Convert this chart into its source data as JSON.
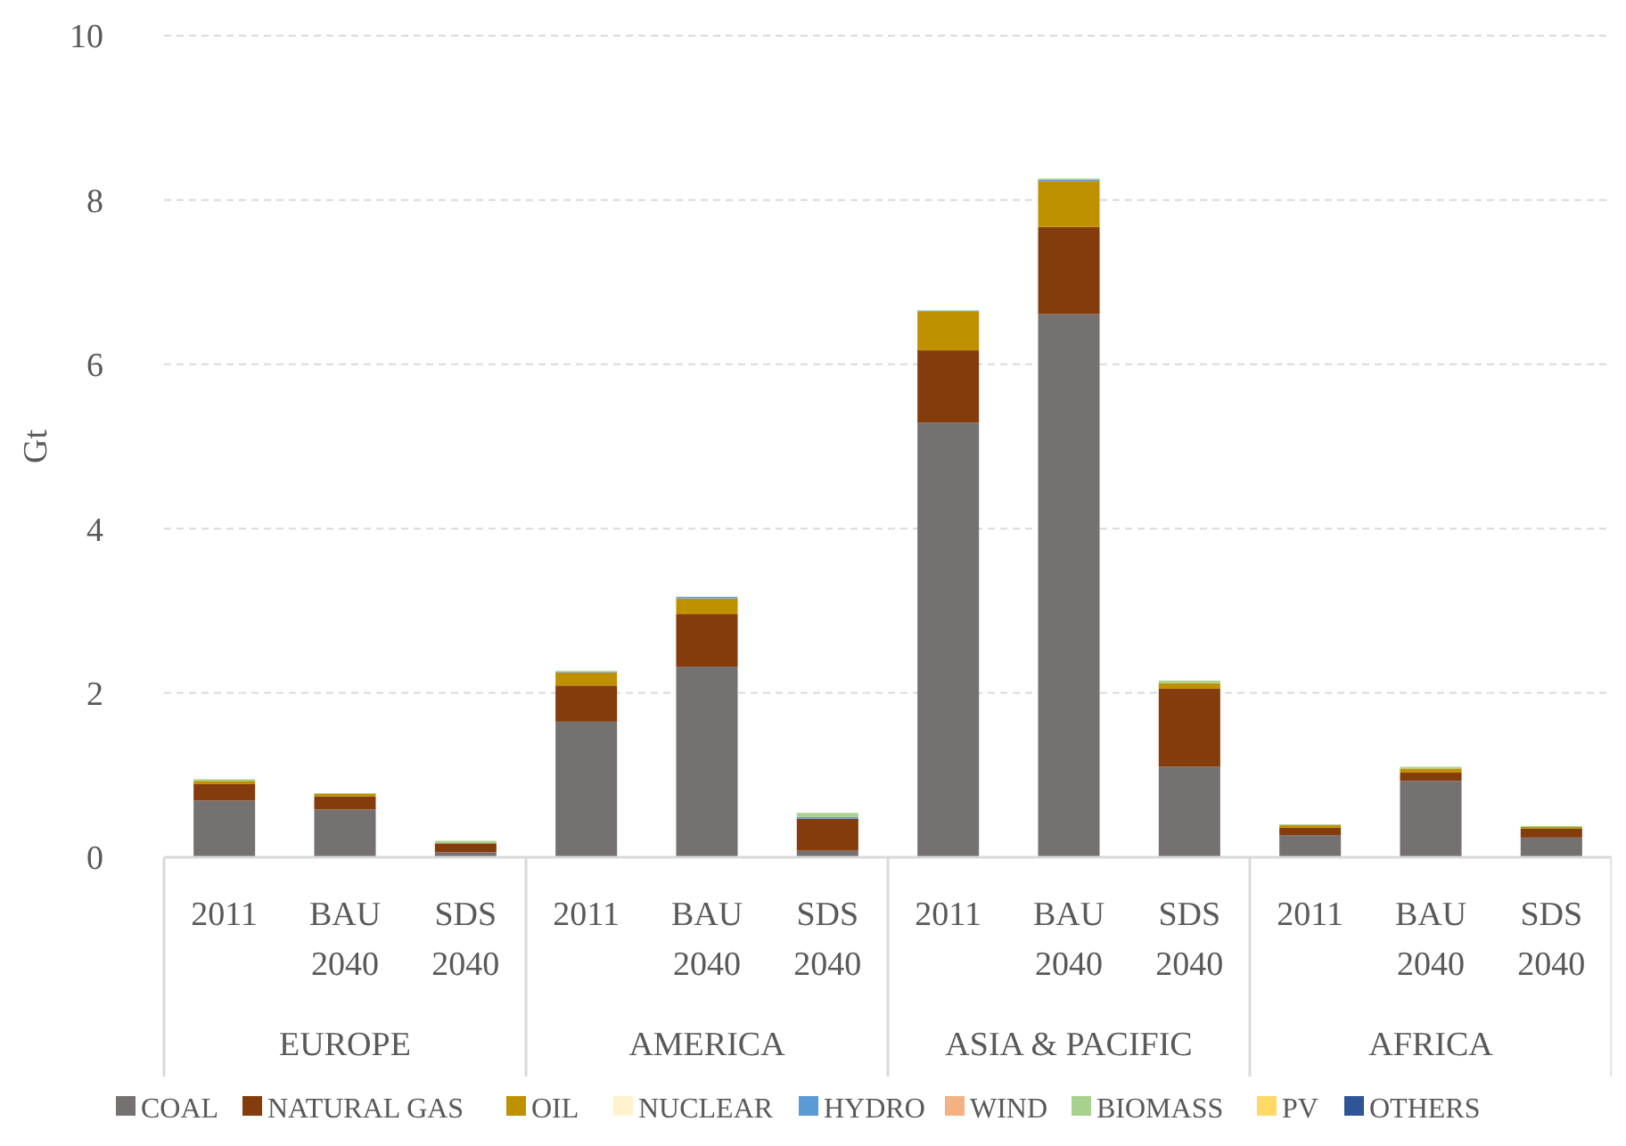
{
  "chart_data": {
    "type": "bar",
    "stacked": true,
    "ylabel": "Gt",
    "categories": [
      "2011",
      "BAU 2040",
      "SDS 2040",
      "2011",
      "BAU 2040",
      "SDS 2040",
      "2011",
      "BAU 2040",
      "SDS 2040",
      "2011",
      "BAU 2040",
      "SDS 2040"
    ],
    "annotations": [
      "EUROPE",
      "AMERICA",
      "ASIA & PACIFIC",
      "AFRICA"
    ],
    "series": [
      {
        "name": "COAL",
        "color": "#767171",
        "values": [
          0.69,
          0.58,
          0.06,
          1.65,
          2.32,
          0.08,
          5.29,
          6.61,
          1.1,
          0.27,
          0.93,
          0.24
        ]
      },
      {
        "name": "NATURAL GAS",
        "color": "#843c0c",
        "values": [
          0.2,
          0.16,
          0.11,
          0.44,
          0.64,
          0.39,
          0.88,
          1.06,
          0.95,
          0.09,
          0.1,
          0.11
        ]
      },
      {
        "name": "OIL",
        "color": "#bf9000",
        "values": [
          0.04,
          0.03,
          0,
          0.16,
          0.19,
          0,
          0.47,
          0.56,
          0.07,
          0.03,
          0.05,
          0.02
        ]
      },
      {
        "name": "NUCLEAR",
        "color": "#fff2cc",
        "values": [
          0,
          0,
          0,
          0,
          0,
          0,
          0,
          0,
          0,
          0,
          0,
          0
        ]
      },
      {
        "name": "HYDRO",
        "color": "#5b9bd5",
        "values": [
          0,
          0,
          0,
          0.01,
          0.02,
          0.02,
          0.01,
          0.02,
          0,
          0,
          0,
          0
        ]
      },
      {
        "name": "WIND",
        "color": "#f4b183",
        "values": [
          0,
          0,
          0,
          0,
          0,
          0,
          0,
          0,
          0,
          0,
          0,
          0
        ]
      },
      {
        "name": "BIOMASS",
        "color": "#a9d18e",
        "values": [
          0.02,
          0.01,
          0.03,
          0.01,
          0,
          0.05,
          0.01,
          0.01,
          0.03,
          0.01,
          0.02,
          0.01
        ]
      },
      {
        "name": "PV",
        "color": "#ffd966",
        "values": [
          0,
          0,
          0,
          0,
          0,
          0,
          0,
          0,
          0,
          0,
          0,
          0
        ]
      },
      {
        "name": "OTHERS",
        "color": "#2f5597",
        "values": [
          0,
          0,
          0,
          0,
          0,
          0,
          0,
          0,
          0,
          0,
          0,
          0
        ]
      }
    ],
    "ylim": [
      0,
      10
    ],
    "yticks": [
      0,
      2,
      4,
      6,
      8,
      10
    ],
    "grid": "y",
    "legend": "bottom"
  }
}
